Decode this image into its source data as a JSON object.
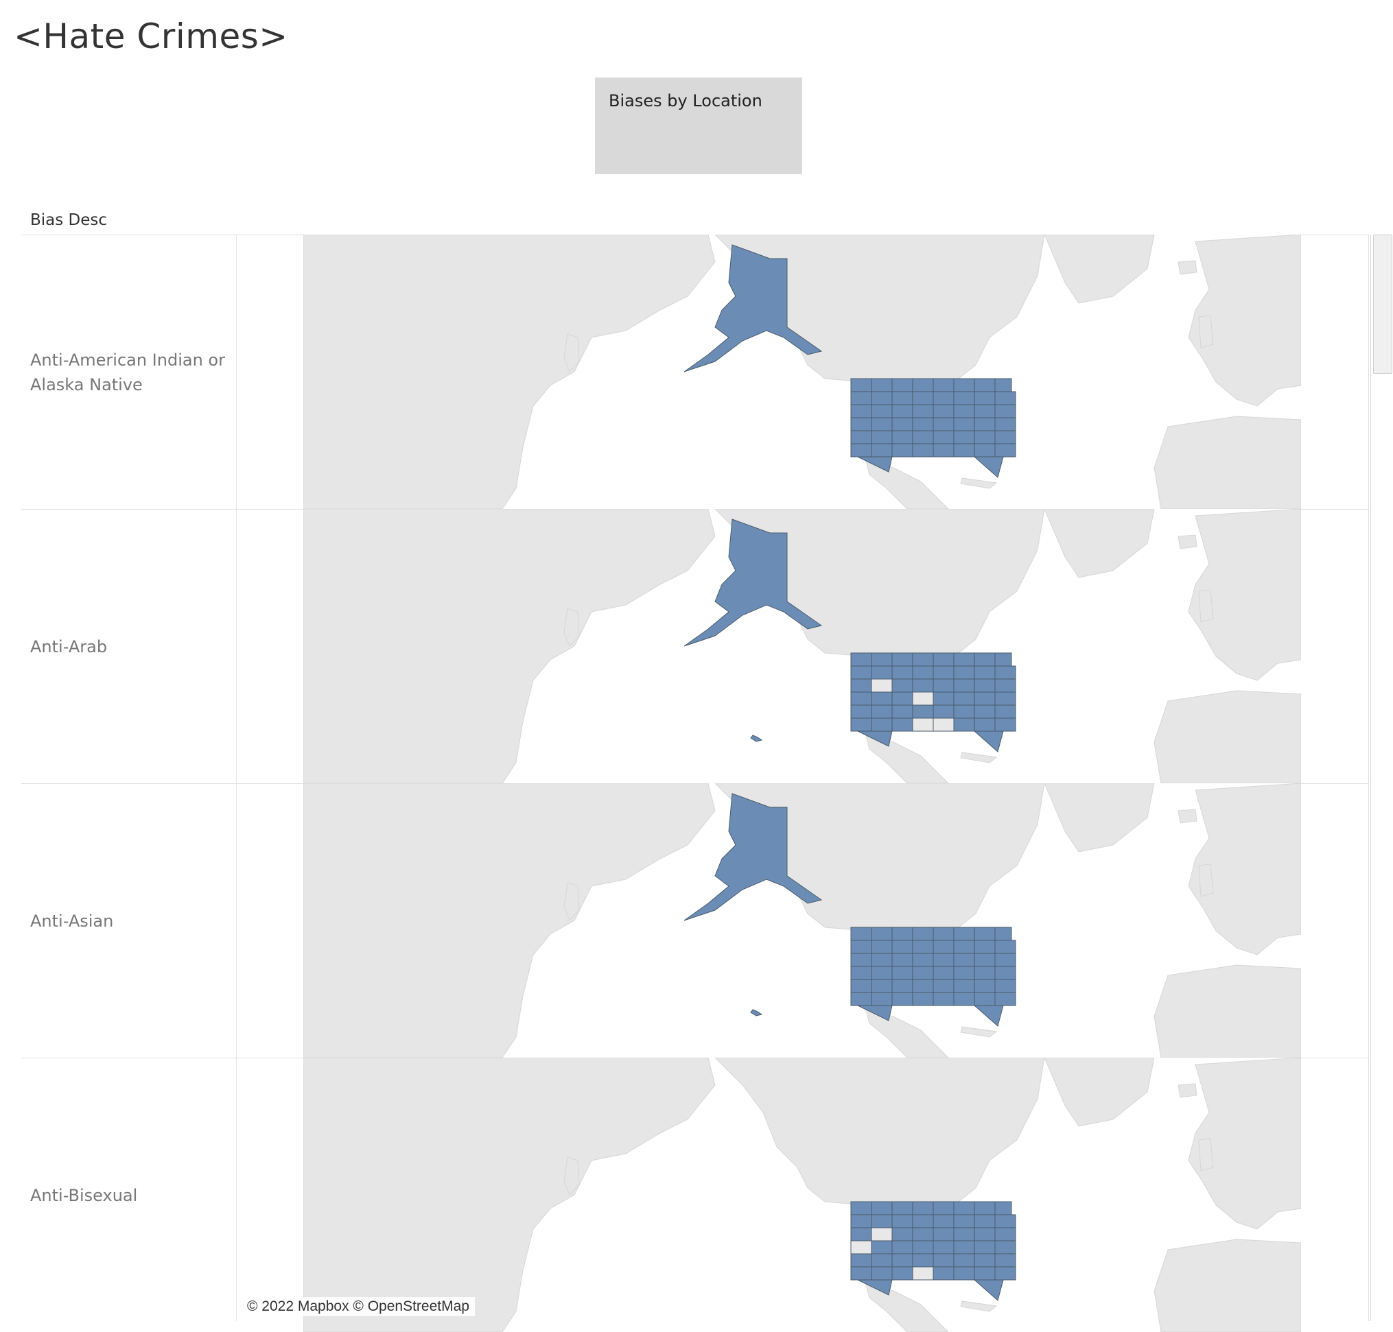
{
  "dashboard": {
    "title": "<Hate Crimes>",
    "sheet_button": "Biases by Location"
  },
  "table": {
    "column_header": "Bias Desc",
    "rows": [
      {
        "label": "Anti-American Indian or Alaska Native",
        "missing_states": [],
        "hawaii": false
      },
      {
        "label": "Anti-Arab",
        "missing_states": [
          "WY",
          "KS",
          "MS",
          "AL"
        ],
        "hawaii": true
      },
      {
        "label": "Anti-Asian",
        "missing_states": [],
        "hawaii": true
      },
      {
        "label": "Anti-Bisexual",
        "missing_states": [
          "NV",
          "WY",
          "MS"
        ],
        "hawaii": false
      }
    ]
  },
  "map": {
    "attribution": "© 2022 Mapbox © OpenStreetMap",
    "state_fill": "#6b8db5",
    "state_border": "#4a5a6a",
    "land_color": "#e6e6e6",
    "missing_state_fill": "#e8e8e8",
    "water_color": "#ffffff"
  }
}
